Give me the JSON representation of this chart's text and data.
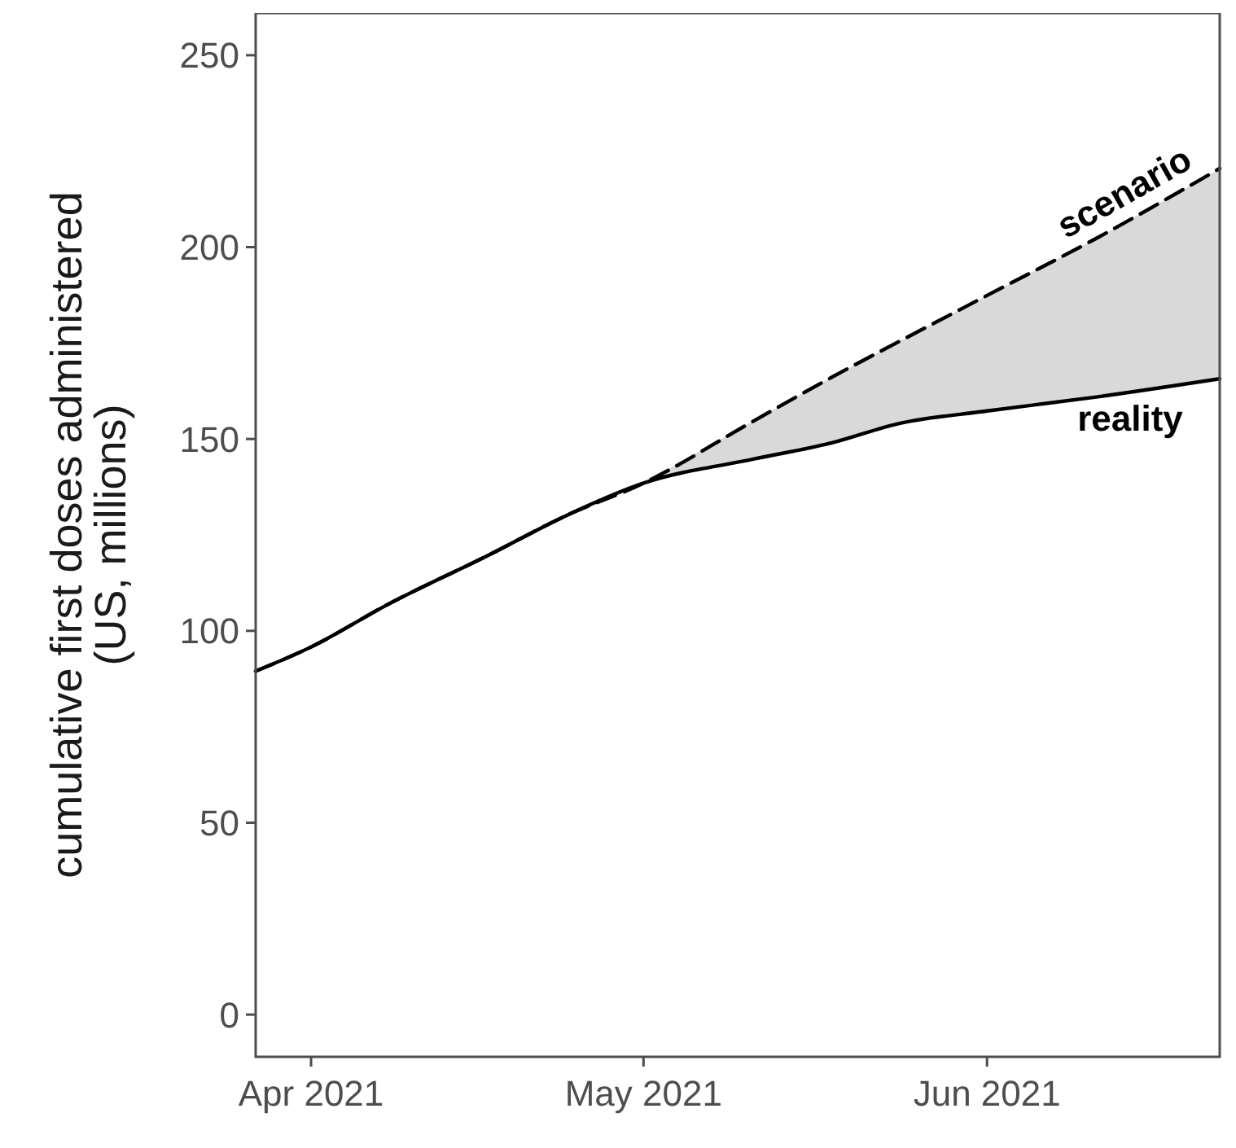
{
  "chart_data": {
    "type": "line",
    "ylabel": "cumulative first doses administered\n(US, millions)",
    "x": [
      "2021-03-27",
      "2021-04-01",
      "2021-04-08",
      "2021-04-17",
      "2021-04-24",
      "2021-05-01",
      "2021-05-11",
      "2021-05-18",
      "2021-05-24",
      "2021-06-01",
      "2021-06-11",
      "2021-06-22"
    ],
    "series": [
      {
        "name": "scenario",
        "color": "#000000",
        "line_style": "dashed",
        "values": [
          89.5,
          95.8,
          107,
          119.7,
          130,
          138.5,
          154.8,
          166.1,
          175.3,
          187.4,
          202.5,
          220.5
        ],
        "lower": [
          null,
          null,
          null,
          null,
          null,
          138.5,
          144.8,
          149,
          154,
          157.3,
          161,
          165.7
        ],
        "upper": [
          null,
          null,
          null,
          null,
          null,
          138.5,
          154.8,
          166.1,
          175.3,
          187.4,
          202.5,
          220.5
        ]
      },
      {
        "name": "reality",
        "color": "#000000",
        "line_style": "solid",
        "values": [
          89.5,
          95.8,
          107,
          119.7,
          130,
          138.5,
          144.8,
          149,
          154,
          157.3,
          161,
          165.7
        ]
      }
    ],
    "xlim": [
      "2021-03-27",
      "2021-06-22"
    ],
    "xticks": [
      {
        "value": "2021-04-01",
        "label": "Apr 2021"
      },
      {
        "value": "2021-05-01",
        "label": "May 2021"
      },
      {
        "value": "2021-06-01",
        "label": "Jun 2021"
      }
    ],
    "ylim": [
      -11,
      261
    ],
    "yticks": [
      0,
      50,
      100,
      150,
      200,
      250
    ],
    "grid": false
  }
}
